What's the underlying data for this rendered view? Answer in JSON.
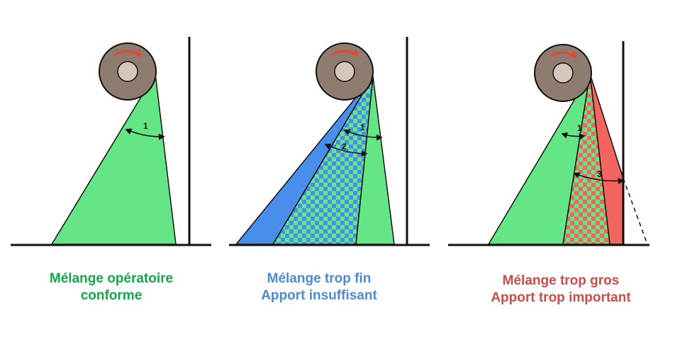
{
  "colors": {
    "green": "#65e686",
    "blue": "#4a8eec",
    "red": "#f2665e",
    "roller": "#8f7c70",
    "hub": "#d7c6be",
    "arrow": "#e24a33",
    "caption_green": "#12a84a",
    "caption_blue": "#4a8bd8",
    "caption_red": "#c94b4b"
  },
  "panels": [
    {
      "id": "conforme",
      "caption_lines": [
        "Mélange opératoire",
        "conforme"
      ],
      "caption_color": "#12a84a",
      "angle_labels": [
        "1"
      ]
    },
    {
      "id": "trop-fin",
      "caption_lines": [
        "Mélange trop fin",
        "Apport insuffisant"
      ],
      "caption_color": "#4a8bd8",
      "angle_labels": [
        "1",
        "2"
      ]
    },
    {
      "id": "trop-gros",
      "caption_lines": [
        "Mélange trop gros",
        "Apport trop important"
      ],
      "caption_color": "#c94b4b",
      "angle_labels": [
        "1",
        "3"
      ]
    }
  ]
}
